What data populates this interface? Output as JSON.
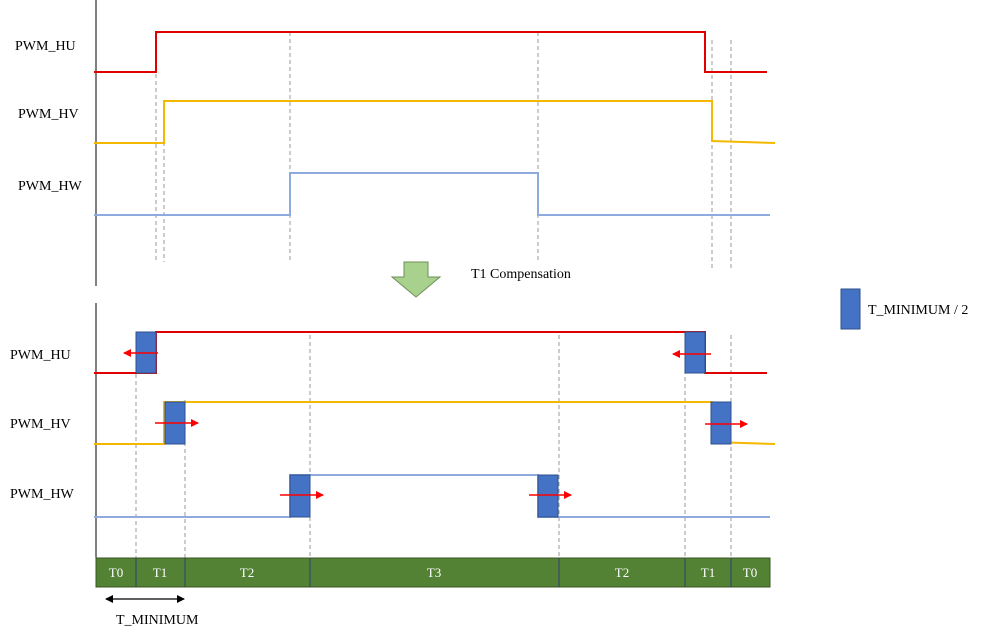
{
  "signals_top": [
    "PWM_HU",
    "PWM_HV",
    "PWM_HW"
  ],
  "signals_bottom": [
    "PWM_HU",
    "PWM_HV",
    "PWM_HW"
  ],
  "compensation_label": "T1  Compensation",
  "legend_label": "T_MINIMUM / 2",
  "timeline_segments": [
    "T0",
    "T1",
    "T2",
    "T3",
    "T2",
    "T1",
    "T0"
  ],
  "t_minimum_label": "T_MINIMUM",
  "colors": {
    "hu": "#e00000",
    "hv": "#f5b800",
    "hw": "#8faadc",
    "pulse": "#4472c4",
    "arrow_marker": "#ff0000",
    "timeline": "#548235",
    "compensation_arrow": "#a9d18e"
  }
}
